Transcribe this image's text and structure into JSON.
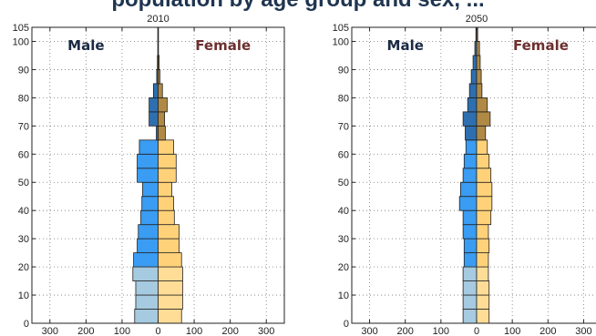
{
  "header": {
    "title": "population by age group and sex, ..."
  },
  "colors": {
    "male_old": "#2e6fb0",
    "male": "#3a9cf2",
    "male_young": "#a6cadf",
    "female_old": "#b08a45",
    "female": "#ffd27a",
    "female_young": "#ffdd96",
    "male_label": "#1a2a44",
    "female_label": "#6e2f2f"
  },
  "chart_data": [
    {
      "type": "bar",
      "orientation": "horizontal-pyramid",
      "title": "2010",
      "male_label": "Male",
      "female_label": "Female",
      "xlim": [
        -350,
        350
      ],
      "ylim": [
        0,
        105
      ],
      "xticks": [
        -300,
        -200,
        -100,
        0,
        100,
        200,
        300
      ],
      "xtick_labels": [
        "300",
        "200",
        "100",
        "0",
        "100",
        "200",
        "300"
      ],
      "yticks": [
        0,
        10,
        20,
        30,
        40,
        50,
        60,
        70,
        80,
        90,
        100,
        105
      ],
      "grid": true,
      "age_groups": [
        0,
        5,
        10,
        15,
        20,
        25,
        30,
        35,
        40,
        45,
        50,
        55,
        60,
        65,
        70,
        75,
        80,
        85,
        90,
        95,
        100
      ],
      "male": [
        65,
        62,
        62,
        70,
        68,
        58,
        55,
        48,
        45,
        43,
        58,
        58,
        52,
        5,
        25,
        25,
        13,
        4,
        2,
        1,
        1
      ],
      "female": [
        65,
        68,
        68,
        68,
        65,
        58,
        58,
        45,
        43,
        38,
        50,
        50,
        43,
        20,
        18,
        25,
        12,
        5,
        3,
        1,
        1
      ]
    },
    {
      "type": "bar",
      "orientation": "horizontal-pyramid",
      "title": "2050",
      "male_label": "Male",
      "female_label": "Female",
      "xlim": [
        -350,
        350
      ],
      "ylim": [
        0,
        105
      ],
      "xticks": [
        -300,
        -200,
        -100,
        0,
        100,
        200,
        300
      ],
      "xtick_labels": [
        "300",
        "200",
        "100",
        "0",
        "100",
        "200",
        "300"
      ],
      "yticks": [
        0,
        10,
        20,
        30,
        40,
        50,
        60,
        70,
        80,
        90,
        100,
        105
      ],
      "grid": true,
      "age_groups": [
        0,
        5,
        10,
        15,
        20,
        25,
        30,
        35,
        40,
        45,
        50,
        55,
        60,
        65,
        70,
        75,
        80,
        85,
        90,
        95,
        100
      ],
      "male": [
        38,
        38,
        38,
        38,
        35,
        35,
        38,
        38,
        48,
        45,
        38,
        35,
        30,
        32,
        38,
        25,
        20,
        15,
        10,
        5,
        2
      ],
      "female": [
        35,
        35,
        35,
        33,
        33,
        35,
        33,
        40,
        43,
        43,
        40,
        35,
        30,
        25,
        38,
        30,
        15,
        13,
        10,
        8,
        3
      ]
    }
  ]
}
